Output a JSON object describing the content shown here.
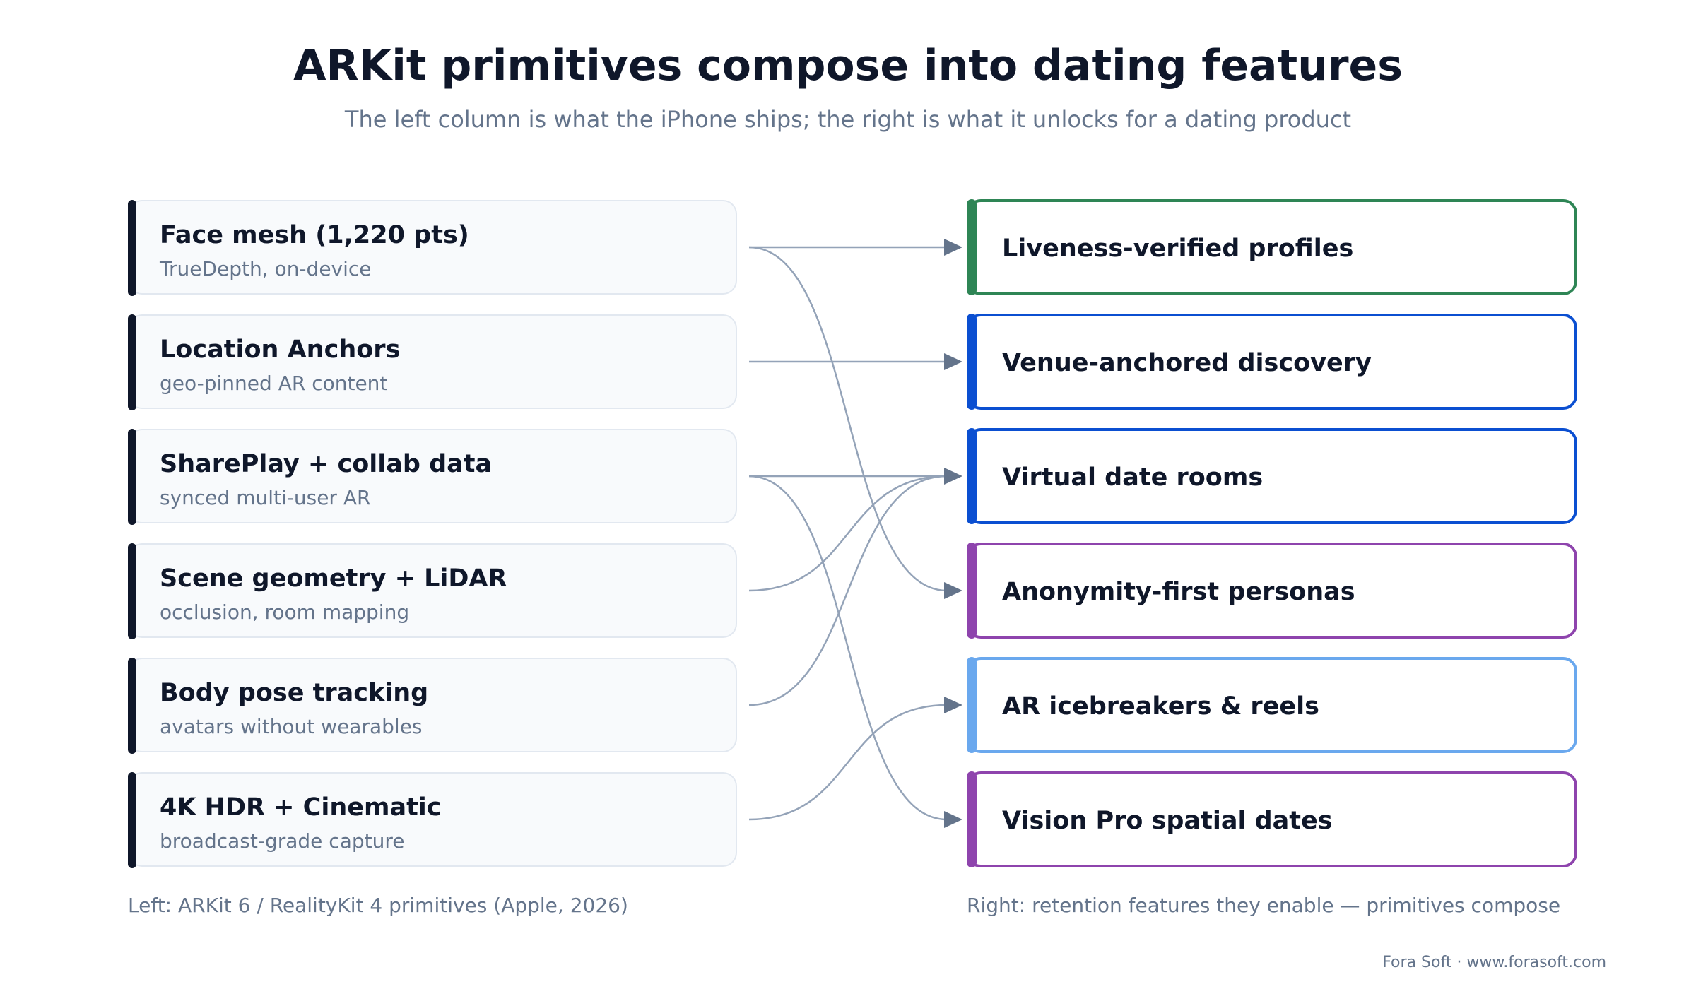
{
  "header": {
    "title": "ARKit primitives compose into dating features",
    "subtitle": "The left column is what the iPhone ships; the right is what it unlocks for a dating product"
  },
  "primitives": [
    {
      "name": "Face mesh (1,220 pts)",
      "desc": "TrueDepth, on-device"
    },
    {
      "name": "Location Anchors",
      "desc": "geo-pinned AR content"
    },
    {
      "name": "SharePlay + collab data",
      "desc": "synced multi-user AR"
    },
    {
      "name": "Scene geometry + LiDAR",
      "desc": "occlusion, room mapping"
    },
    {
      "name": "Body pose tracking",
      "desc": "avatars without wearables"
    },
    {
      "name": "4K HDR + Cinematic",
      "desc": "broadcast-grade capture"
    }
  ],
  "features": [
    {
      "name": "Liveness-verified profiles",
      "color": "#2e8555"
    },
    {
      "name": "Venue-anchored discovery",
      "color": "#0b4fd1"
    },
    {
      "name": "Virtual date rooms",
      "color": "#0b4fd1"
    },
    {
      "name": "Anonymity-first personas",
      "color": "#8e44ad"
    },
    {
      "name": "AR icebreakers & reels",
      "color": "#6aa8ee"
    },
    {
      "name": "Vision Pro spatial dates",
      "color": "#8e44ad"
    }
  ],
  "connections": [
    {
      "from": 0,
      "to": 0
    },
    {
      "from": 0,
      "to": 3
    },
    {
      "from": 1,
      "to": 1
    },
    {
      "from": 2,
      "to": 2
    },
    {
      "from": 2,
      "to": 5
    },
    {
      "from": 3,
      "to": 2
    },
    {
      "from": 4,
      "to": 2
    },
    {
      "from": 5,
      "to": 4
    }
  ],
  "colors": {
    "connector": "#94a3b8",
    "arrowhead": "#64748b",
    "primitive_accent": "#0f172a"
  },
  "footer": {
    "left_note": "Left: ARKit 6 / RealityKit 4 primitives (Apple, 2026)",
    "right_note": "Right: retention features they enable — primitives compose",
    "credit": "Fora Soft · www.forasoft.com"
  }
}
